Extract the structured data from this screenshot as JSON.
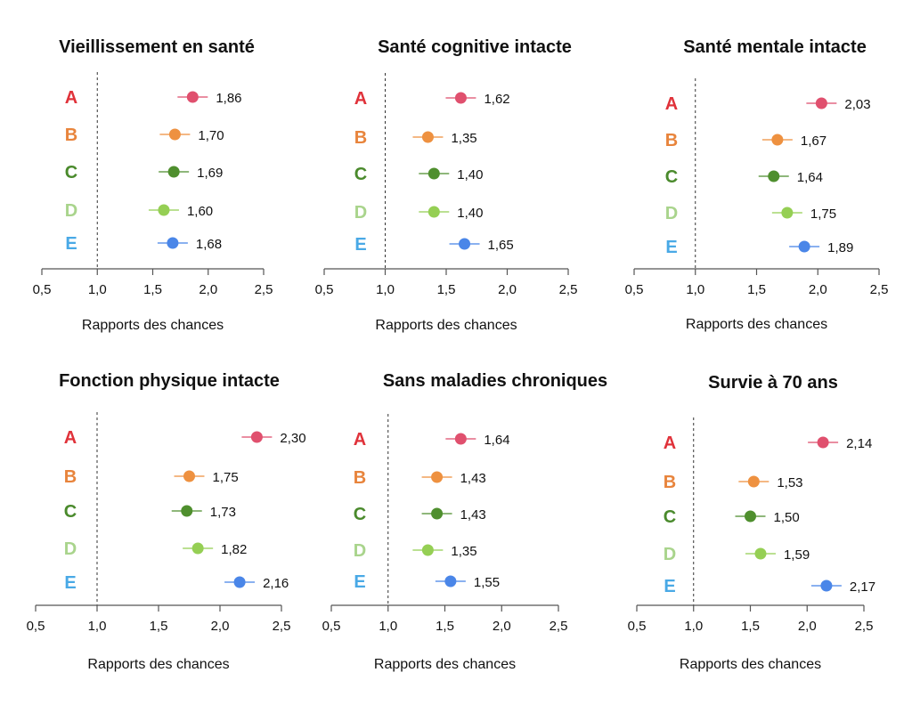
{
  "row_colors": {
    "A": "#e0323a",
    "B": "#e8843c",
    "C": "#4a8a2c",
    "D": "#a9d48c",
    "E": "#49a9e6"
  },
  "point_colors": {
    "A": "#e0506e",
    "B": "#ee9140",
    "C": "#4f8f2e",
    "D": "#95cf54",
    "E": "#4a86e8"
  },
  "axis_color": "#555555",
  "reference_line": {
    "value": 1.0,
    "style": "dashed"
  },
  "chart_data": [
    {
      "type": "scatter",
      "title": "Vieillissement en santé",
      "xlabel": "Rapports des chances",
      "xlim": [
        0.5,
        2.5
      ],
      "xticks": [
        "0,5",
        "1,0",
        "1,5",
        "2,0",
        "2,5"
      ],
      "rows": [
        "A",
        "B",
        "C",
        "D",
        "E"
      ],
      "values": [
        1.86,
        1.7,
        1.69,
        1.6,
        1.68
      ],
      "value_labels": [
        "1,86",
        "1,70",
        "1,69",
        "1,60",
        "1,68"
      ]
    },
    {
      "type": "scatter",
      "title": "Santé cognitive intacte",
      "xlabel": "Rapports des chances",
      "xlim": [
        0.5,
        2.5
      ],
      "xticks": [
        "0,5",
        "1,0",
        "1,5",
        "2,0",
        "2,5"
      ],
      "rows": [
        "A",
        "B",
        "C",
        "D",
        "E"
      ],
      "values": [
        1.62,
        1.35,
        1.4,
        1.4,
        1.65
      ],
      "value_labels": [
        "1,62",
        "1,35",
        "1,40",
        "1,40",
        "1,65"
      ]
    },
    {
      "type": "scatter",
      "title": "Santé mentale intacte",
      "xlabel": "Rapports des chances",
      "xlim": [
        0.5,
        2.5
      ],
      "xticks": [
        "0,5",
        "1,0",
        "1,5",
        "2,0",
        "2,5"
      ],
      "rows": [
        "A",
        "B",
        "C",
        "D",
        "E"
      ],
      "values": [
        2.03,
        1.67,
        1.64,
        1.75,
        1.89
      ],
      "value_labels": [
        "2,03",
        "1,67",
        "1,64",
        "1,75",
        "1,89"
      ]
    },
    {
      "type": "scatter",
      "title": "Fonction physique intacte",
      "xlabel": "Rapports des chances",
      "xlim": [
        0.5,
        2.5
      ],
      "xticks": [
        "0,5",
        "1,0",
        "1,5",
        "2,0",
        "2,5"
      ],
      "rows": [
        "A",
        "B",
        "C",
        "D",
        "E"
      ],
      "values": [
        2.3,
        1.75,
        1.73,
        1.82,
        2.16
      ],
      "value_labels": [
        "2,30",
        "1,75",
        "1,73",
        "1,82",
        "2,16"
      ]
    },
    {
      "type": "scatter",
      "title": "Sans maladies chroniques",
      "xlabel": "Rapports des chances",
      "xlim": [
        0.5,
        2.5
      ],
      "xticks": [
        "0,5",
        "1,0",
        "1,5",
        "2,0",
        "2,5"
      ],
      "rows": [
        "A",
        "B",
        "C",
        "D",
        "E"
      ],
      "values": [
        1.64,
        1.43,
        1.43,
        1.35,
        1.55
      ],
      "value_labels": [
        "1,64",
        "1,43",
        "1,43",
        "1,35",
        "1,55"
      ]
    },
    {
      "type": "scatter",
      "title": "Survie à 70 ans",
      "xlabel": "Rapports des chances",
      "xlim": [
        0.5,
        2.5
      ],
      "xticks": [
        "0,5",
        "1,0",
        "1,5",
        "2,0",
        "2,5"
      ],
      "rows": [
        "A",
        "B",
        "C",
        "D",
        "E"
      ],
      "values": [
        2.14,
        1.53,
        1.5,
        1.59,
        2.17
      ],
      "value_labels": [
        "2,14",
        "1,53",
        "1,50",
        "1,59",
        "2,17"
      ]
    }
  ]
}
